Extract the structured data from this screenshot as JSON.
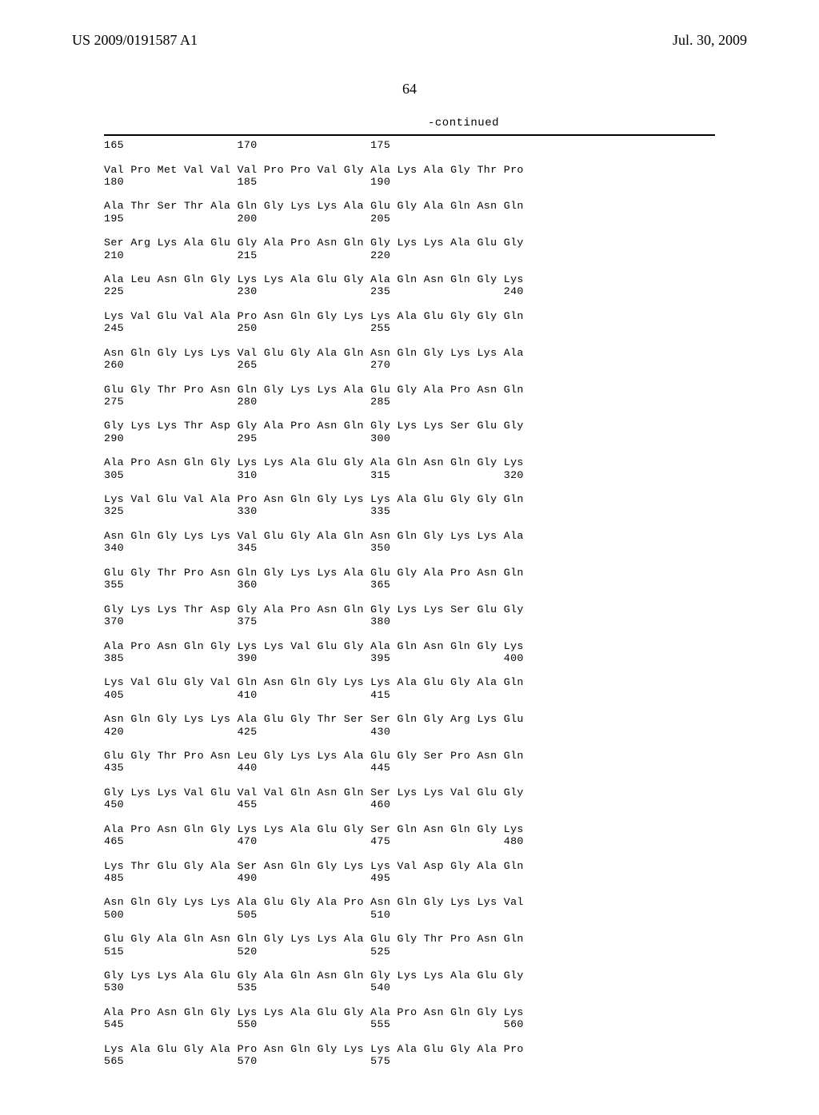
{
  "header": {
    "left": "US 2009/0191587 A1",
    "right": "Jul. 30, 2009"
  },
  "page_number": "64",
  "continued_label": "-continued",
  "sequence_text": "165                 170                 175\n\nVal Pro Met Val Val Val Pro Pro Val Gly Ala Lys Ala Gly Thr Pro\n180                 185                 190\n\nAla Thr Ser Thr Ala Gln Gly Lys Lys Ala Glu Gly Ala Gln Asn Gln\n195                 200                 205\n\nSer Arg Lys Ala Glu Gly Ala Pro Asn Gln Gly Lys Lys Ala Glu Gly\n210                 215                 220\n\nAla Leu Asn Gln Gly Lys Lys Ala Glu Gly Ala Gln Asn Gln Gly Lys\n225                 230                 235                 240\n\nLys Val Glu Val Ala Pro Asn Gln Gly Lys Lys Ala Glu Gly Gly Gln\n245                 250                 255\n\nAsn Gln Gly Lys Lys Val Glu Gly Ala Gln Asn Gln Gly Lys Lys Ala\n260                 265                 270\n\nGlu Gly Thr Pro Asn Gln Gly Lys Lys Ala Glu Gly Ala Pro Asn Gln\n275                 280                 285\n\nGly Lys Lys Thr Asp Gly Ala Pro Asn Gln Gly Lys Lys Ser Glu Gly\n290                 295                 300\n\nAla Pro Asn Gln Gly Lys Lys Ala Glu Gly Ala Gln Asn Gln Gly Lys\n305                 310                 315                 320\n\nLys Val Glu Val Ala Pro Asn Gln Gly Lys Lys Ala Glu Gly Gly Gln\n325                 330                 335\n\nAsn Gln Gly Lys Lys Val Glu Gly Ala Gln Asn Gln Gly Lys Lys Ala\n340                 345                 350\n\nGlu Gly Thr Pro Asn Gln Gly Lys Lys Ala Glu Gly Ala Pro Asn Gln\n355                 360                 365\n\nGly Lys Lys Thr Asp Gly Ala Pro Asn Gln Gly Lys Lys Ser Glu Gly\n370                 375                 380\n\nAla Pro Asn Gln Gly Lys Lys Val Glu Gly Ala Gln Asn Gln Gly Lys\n385                 390                 395                 400\n\nLys Val Glu Gly Val Gln Asn Gln Gly Lys Lys Ala Glu Gly Ala Gln\n405                 410                 415\n\nAsn Gln Gly Lys Lys Ala Glu Gly Thr Ser Ser Gln Gly Arg Lys Glu\n420                 425                 430\n\nGlu Gly Thr Pro Asn Leu Gly Lys Lys Ala Glu Gly Ser Pro Asn Gln\n435                 440                 445\n\nGly Lys Lys Val Glu Val Val Gln Asn Gln Ser Lys Lys Val Glu Gly\n450                 455                 460\n\nAla Pro Asn Gln Gly Lys Lys Ala Glu Gly Ser Gln Asn Gln Gly Lys\n465                 470                 475                 480\n\nLys Thr Glu Gly Ala Ser Asn Gln Gly Lys Lys Val Asp Gly Ala Gln\n485                 490                 495\n\nAsn Gln Gly Lys Lys Ala Glu Gly Ala Pro Asn Gln Gly Lys Lys Val\n500                 505                 510\n\nGlu Gly Ala Gln Asn Gln Gly Lys Lys Ala Glu Gly Thr Pro Asn Gln\n515                 520                 525\n\nGly Lys Lys Ala Glu Gly Ala Gln Asn Gln Gly Lys Lys Ala Glu Gly\n530                 535                 540\n\nAla Pro Asn Gln Gly Lys Lys Ala Glu Gly Ala Pro Asn Gln Gly Lys\n545                 550                 555                 560\n\nLys Ala Glu Gly Ala Pro Asn Gln Gly Lys Lys Ala Glu Gly Ala Pro\n565                 570                 575"
}
